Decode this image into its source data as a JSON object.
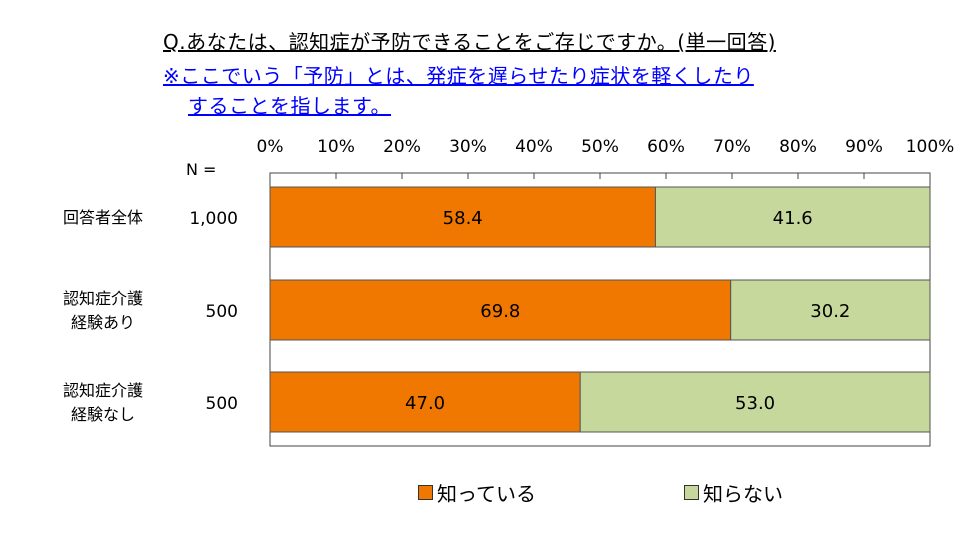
{
  "question": "Q.あなたは、認知症が予防できることをご存じですか。(単一回答)",
  "note_line1": "※ここでいう「予防」とは、発症を遅らせたり症状を軽くしたり",
  "note_line2": "することを指します。",
  "n_header": "N =",
  "colors": {
    "know": "#f07800",
    "not_know": "#c6d89c"
  },
  "chart_data": {
    "type": "bar",
    "orientation": "horizontal",
    "stacked": true,
    "categories": [
      "回答者全体",
      "認知症介護経験あり",
      "認知症介護経験なし"
    ],
    "category_lines": [
      [
        "回答者全体"
      ],
      [
        "認知症介護",
        "経験あり"
      ],
      [
        "認知症介護",
        "経験なし"
      ]
    ],
    "n_values": [
      "1,000",
      "500",
      "500"
    ],
    "series": [
      {
        "name": "知っている",
        "values": [
          58.4,
          69.8,
          47.0
        ],
        "labels": [
          "58.4",
          "69.8",
          "47.0"
        ]
      },
      {
        "name": "知らない",
        "values": [
          41.6,
          30.2,
          53.0
        ],
        "labels": [
          "41.6",
          "30.2",
          "53.0"
        ]
      }
    ],
    "x_ticks": [
      "0%",
      "10%",
      "20%",
      "30%",
      "40%",
      "50%",
      "60%",
      "70%",
      "80%",
      "90%",
      "100%"
    ],
    "xlim": [
      0,
      100
    ],
    "legend_position": "bottom"
  }
}
